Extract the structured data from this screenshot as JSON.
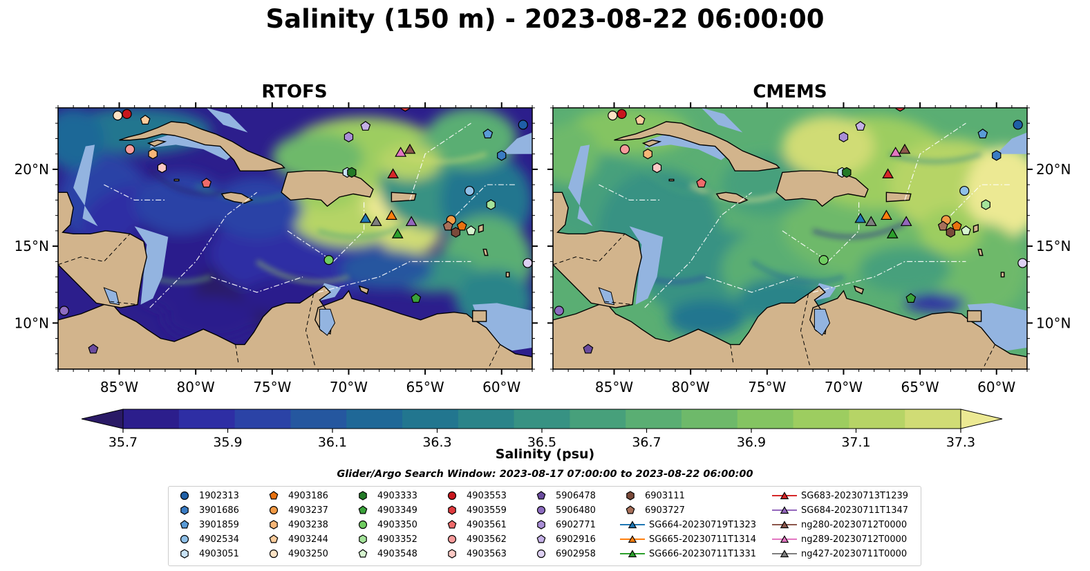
{
  "title": "Salinity (150 m) - 2023-08-22 06:00:00",
  "panels": [
    {
      "title": "RTOFS",
      "model": "rtofs"
    },
    {
      "title": "CMEMS",
      "model": "cmems"
    }
  ],
  "map_extent": {
    "lon_min": -89,
    "lon_max": -58,
    "lat_min": 7,
    "lat_max": 24
  },
  "lon_ticks": [
    {
      "value": -85,
      "label": "85°W"
    },
    {
      "value": -80,
      "label": "80°W"
    },
    {
      "value": -75,
      "label": "75°W"
    },
    {
      "value": -70,
      "label": "70°W"
    },
    {
      "value": -65,
      "label": "65°W"
    },
    {
      "value": -60,
      "label": "60°W"
    }
  ],
  "lat_ticks": [
    {
      "value": 20,
      "label": "20°N"
    },
    {
      "value": 15,
      "label": "15°N"
    },
    {
      "value": 10,
      "label": "10°N"
    }
  ],
  "colorbar": {
    "label": "Salinity (psu)",
    "min": 35.6,
    "max": 37.4,
    "ticks": [
      "35.7",
      "35.9",
      "36.1",
      "36.3",
      "36.5",
      "36.7",
      "36.9",
      "37.1",
      "37.3"
    ],
    "colors": [
      "#2a1a66",
      "#2c1e8c",
      "#2e2ea4",
      "#2b43a6",
      "#25579f",
      "#1f6897",
      "#22768f",
      "#2b8489",
      "#379283",
      "#47a07b",
      "#5aae73",
      "#6eb96a",
      "#84c462",
      "#9dcd60",
      "#b6d466",
      "#d0dc75",
      "#ece993"
    ],
    "extend": "both"
  },
  "colors": {
    "land": "#d2b48c",
    "shelf": "#93b4e0",
    "coast": "#000000"
  },
  "search_window": "Glider/Argo Search Window: 2023-08-17 07:00:00 to 2023-08-22 06:00:00",
  "legend": {
    "columns": [
      [
        {
          "label": "1902313",
          "marker": "circle",
          "color": "#1f5fa6"
        },
        {
          "label": "3901686",
          "marker": "hexagon",
          "color": "#3a7cc4"
        },
        {
          "label": "3901859",
          "marker": "pentagon",
          "color": "#5a9bd6"
        },
        {
          "label": "4902534",
          "marker": "circle",
          "color": "#8fc0e8"
        },
        {
          "label": "4903051",
          "marker": "hexagon",
          "color": "#c9e3f7"
        }
      ],
      [
        {
          "label": "4903186",
          "marker": "pentagon",
          "color": "#e8710f"
        },
        {
          "label": "4903237",
          "marker": "circle",
          "color": "#f29a45"
        },
        {
          "label": "4903238",
          "marker": "hexagon",
          "color": "#f7b677"
        },
        {
          "label": "4903244",
          "marker": "pentagon",
          "color": "#fbcc9c"
        },
        {
          "label": "4903250",
          "marker": "circle",
          "color": "#fde2c4"
        }
      ],
      [
        {
          "label": "4903333",
          "marker": "hexagon",
          "color": "#237a27"
        },
        {
          "label": "4903349",
          "marker": "pentagon",
          "color": "#3aa23a"
        },
        {
          "label": "4903350",
          "marker": "circle",
          "color": "#6fcc60"
        },
        {
          "label": "4903352",
          "marker": "hexagon",
          "color": "#a4e39a"
        },
        {
          "label": "4903548",
          "marker": "pentagon",
          "color": "#d6f5cf"
        }
      ],
      [
        {
          "label": "4903553",
          "marker": "circle",
          "color": "#c8161d"
        },
        {
          "label": "4903559",
          "marker": "hexagon",
          "color": "#e03a3e"
        },
        {
          "label": "4903561",
          "marker": "pentagon",
          "color": "#ef6b6b"
        },
        {
          "label": "4903562",
          "marker": "circle",
          "color": "#f79b9b"
        },
        {
          "label": "4903563",
          "marker": "hexagon",
          "color": "#fcc9c4"
        }
      ],
      [
        {
          "label": "5906478",
          "marker": "pentagon",
          "color": "#6a4b9e"
        },
        {
          "label": "5906480",
          "marker": "circle",
          "color": "#8d6cc0"
        },
        {
          "label": "6902771",
          "marker": "hexagon",
          "color": "#a98ed6"
        },
        {
          "label": "6902916",
          "marker": "pentagon",
          "color": "#c4b0e6"
        },
        {
          "label": "6902958",
          "marker": "circle",
          "color": "#ddd0f2"
        }
      ],
      [
        {
          "label": "6903111",
          "marker": "hexagon",
          "color": "#7a4a3a"
        },
        {
          "label": "6903727",
          "marker": "pentagon",
          "color": "#a8705a"
        },
        {
          "label": "SG664-20230719T1323",
          "marker": "triangle-line",
          "color": "#1f77b4"
        },
        {
          "label": "SG665-20230711T1314",
          "marker": "triangle-line",
          "color": "#ff7f0e"
        },
        {
          "label": "SG666-20230711T1331",
          "marker": "triangle-line",
          "color": "#2ca02c"
        }
      ],
      [
        {
          "label": "SG683-20230713T1239",
          "marker": "triangle-line",
          "color": "#d62728"
        },
        {
          "label": "SG684-20230711T1347",
          "marker": "triangle-line",
          "color": "#9467bd"
        },
        {
          "label": "ng280-20230712T0000",
          "marker": "triangle-line",
          "color": "#8c564b"
        },
        {
          "label": "ng289-20230712T0000",
          "marker": "triangle-line",
          "color": "#e377c2"
        },
        {
          "label": "ng427-20230711T0000",
          "marker": "triangle-line",
          "color": "#7f7f7f"
        }
      ]
    ]
  },
  "platforms": [
    {
      "id": "1902313",
      "lon": -58.6,
      "lat": 22.9
    },
    {
      "id": "3901686",
      "lon": -60.0,
      "lat": 20.9
    },
    {
      "id": "3901859",
      "lon": -60.9,
      "lat": 22.3
    },
    {
      "id": "4902534",
      "lon": -62.1,
      "lat": 18.6
    },
    {
      "id": "4903051",
      "lon": -70.1,
      "lat": 19.8
    },
    {
      "id": "4903186",
      "lon": -62.6,
      "lat": 16.3
    },
    {
      "id": "4903237",
      "lon": -63.3,
      "lat": 16.7
    },
    {
      "id": "4903238",
      "lon": -82.8,
      "lat": 21.0
    },
    {
      "id": "4903244",
      "lon": -83.3,
      "lat": 23.2
    },
    {
      "id": "4903250",
      "lon": -85.1,
      "lat": 23.5
    },
    {
      "id": "4903333",
      "lon": -69.8,
      "lat": 19.8
    },
    {
      "id": "4903349",
      "lon": -65.6,
      "lat": 11.6
    },
    {
      "id": "4903350",
      "lon": -71.3,
      "lat": 14.1
    },
    {
      "id": "4903352",
      "lon": -60.7,
      "lat": 17.7
    },
    {
      "id": "4903548",
      "lon": -62.0,
      "lat": 16.0
    },
    {
      "id": "4903553",
      "lon": -84.5,
      "lat": 23.6
    },
    {
      "id": "4903559",
      "lon": -66.3,
      "lat": 24.1
    },
    {
      "id": "4903561",
      "lon": -79.3,
      "lat": 19.1
    },
    {
      "id": "4903562",
      "lon": -84.3,
      "lat": 21.3
    },
    {
      "id": "4903563",
      "lon": -82.2,
      "lat": 20.1
    },
    {
      "id": "5906478",
      "lon": -86.7,
      "lat": 8.3
    },
    {
      "id": "5906480",
      "lon": -88.6,
      "lat": 10.8
    },
    {
      "id": "6902771",
      "lon": -70.0,
      "lat": 22.1
    },
    {
      "id": "6902916",
      "lon": -68.9,
      "lat": 22.8
    },
    {
      "id": "6902958",
      "lon": -58.3,
      "lat": 13.9
    },
    {
      "id": "6903111",
      "lon": -63.0,
      "lat": 15.9
    },
    {
      "id": "6903727",
      "lon": -63.5,
      "lat": 16.3
    },
    {
      "id": "SG664-20230719T1323",
      "lon": -68.9,
      "lat": 16.8
    },
    {
      "id": "SG665-20230711T1314",
      "lon": -67.2,
      "lat": 17.0
    },
    {
      "id": "SG666-20230711T1331",
      "lon": -66.8,
      "lat": 15.8
    },
    {
      "id": "SG683-20230713T1239",
      "lon": -67.1,
      "lat": 19.7
    },
    {
      "id": "SG684-20230711T1347",
      "lon": -65.9,
      "lat": 16.6
    },
    {
      "id": "ng280-20230712T0000",
      "lon": -66.0,
      "lat": 21.3
    },
    {
      "id": "ng289-20230712T0000",
      "lon": -66.6,
      "lat": 21.1
    },
    {
      "id": "ng427-20230711T0000",
      "lon": -68.2,
      "lat": 16.6
    }
  ]
}
